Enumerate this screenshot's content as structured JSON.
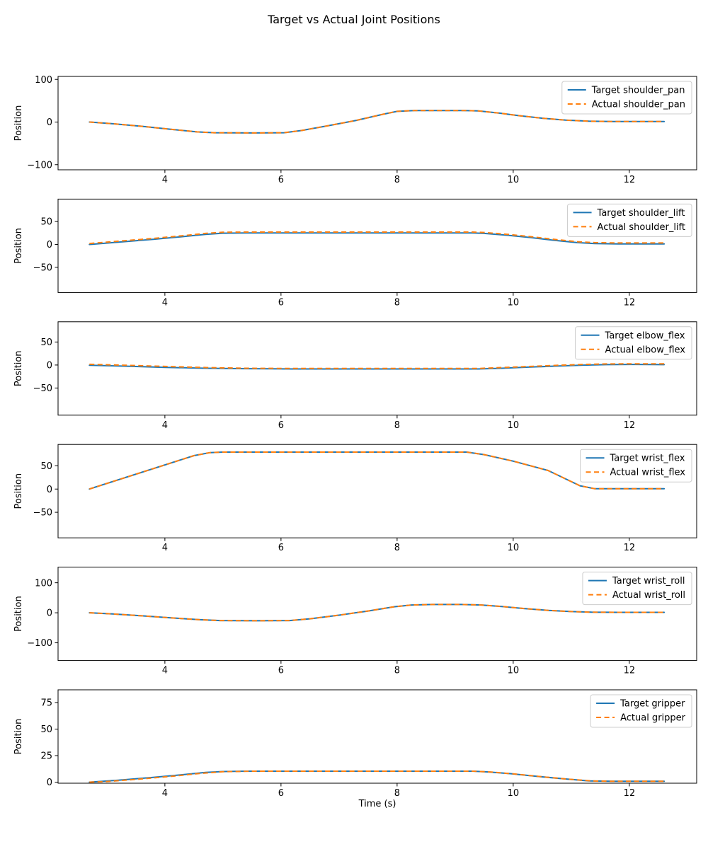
{
  "title": "Target vs Actual Joint Positions",
  "chart_data": {
    "type": "line",
    "title": "Target vs Actual Joint Positions",
    "xlabel": "Time (s)",
    "ylabel": "Position",
    "grid": false,
    "legend_position": "upper right",
    "xlim": [
      2.16,
      13.16
    ],
    "xticks": [
      4,
      6,
      8,
      10,
      12
    ],
    "x_data_range": [
      2.7,
      12.6
    ],
    "colors": {
      "target": "#1f77b4",
      "actual": "#ff7f0e"
    },
    "line_styles": {
      "target": "solid",
      "actual": "dashed"
    },
    "subplots": [
      {
        "joint": "shoulder_pan",
        "legend": [
          "Target shoulder_pan",
          "Actual shoulder_pan"
        ],
        "ylim": [
          -112,
          107
        ],
        "yticks": [
          -100,
          0,
          100
        ],
        "target": [
          [
            2.7,
            0
          ],
          [
            3.1,
            -4
          ],
          [
            3.6,
            -10
          ],
          [
            4.1,
            -17
          ],
          [
            4.55,
            -23
          ],
          [
            4.85,
            -25
          ],
          [
            5.5,
            -25.5
          ],
          [
            6.05,
            -25
          ],
          [
            6.35,
            -20
          ],
          [
            6.8,
            -9
          ],
          [
            7.3,
            4
          ],
          [
            7.75,
            18
          ],
          [
            8.0,
            25
          ],
          [
            8.3,
            27
          ],
          [
            8.8,
            27
          ],
          [
            9.15,
            27
          ],
          [
            9.4,
            26
          ],
          [
            9.75,
            21
          ],
          [
            10.1,
            15
          ],
          [
            10.5,
            9
          ],
          [
            10.9,
            4.5
          ],
          [
            11.3,
            2
          ],
          [
            11.7,
            1.2
          ],
          [
            12.6,
            1.2
          ]
        ],
        "actual": [
          [
            2.7,
            0
          ],
          [
            3.1,
            -4
          ],
          [
            3.6,
            -10
          ],
          [
            4.1,
            -17
          ],
          [
            4.55,
            -23
          ],
          [
            4.85,
            -25
          ],
          [
            5.5,
            -25.5
          ],
          [
            6.05,
            -25
          ],
          [
            6.35,
            -20
          ],
          [
            6.8,
            -9
          ],
          [
            7.3,
            4
          ],
          [
            7.75,
            18
          ],
          [
            8.0,
            25
          ],
          [
            8.3,
            27
          ],
          [
            8.8,
            27
          ],
          [
            9.15,
            27
          ],
          [
            9.4,
            26
          ],
          [
            9.75,
            21
          ],
          [
            10.1,
            15
          ],
          [
            10.5,
            9
          ],
          [
            10.9,
            4.5
          ],
          [
            11.3,
            2
          ],
          [
            11.7,
            1.2
          ],
          [
            12.6,
            1.2
          ]
        ]
      },
      {
        "joint": "shoulder_lift",
        "legend": [
          "Target shoulder_lift",
          "Actual shoulder_lift"
        ],
        "ylim": [
          -105,
          99
        ],
        "yticks": [
          -50,
          0,
          50
        ],
        "target": [
          [
            2.7,
            0
          ],
          [
            3.2,
            5
          ],
          [
            3.8,
            11
          ],
          [
            4.3,
            17
          ],
          [
            4.7,
            22
          ],
          [
            5.0,
            24.5
          ],
          [
            5.4,
            25
          ],
          [
            9.3,
            25
          ],
          [
            9.5,
            24
          ],
          [
            9.9,
            20
          ],
          [
            10.3,
            15
          ],
          [
            10.7,
            9
          ],
          [
            11.1,
            4
          ],
          [
            11.4,
            2
          ],
          [
            11.8,
            1.2
          ],
          [
            12.6,
            1.2
          ]
        ],
        "actual": [
          [
            2.7,
            2
          ],
          [
            3.2,
            7
          ],
          [
            3.8,
            13
          ],
          [
            4.3,
            19
          ],
          [
            4.7,
            24
          ],
          [
            5.0,
            26.5
          ],
          [
            5.4,
            27
          ],
          [
            9.3,
            27
          ],
          [
            9.5,
            26
          ],
          [
            9.9,
            22
          ],
          [
            10.3,
            17
          ],
          [
            10.7,
            11
          ],
          [
            11.1,
            6
          ],
          [
            11.4,
            4
          ],
          [
            11.8,
            3.2
          ],
          [
            12.6,
            3.2
          ]
        ]
      },
      {
        "joint": "elbow_flex",
        "legend": [
          "Target elbow_flex",
          "Actual elbow_flex"
        ],
        "ylim": [
          -109,
          94
        ],
        "yticks": [
          -50,
          0,
          50
        ],
        "target": [
          [
            2.7,
            -0.5
          ],
          [
            3.3,
            -2.5
          ],
          [
            4.0,
            -5
          ],
          [
            4.7,
            -7
          ],
          [
            5.4,
            -8
          ],
          [
            6.2,
            -8.5
          ],
          [
            9.4,
            -8.5
          ],
          [
            9.8,
            -7
          ],
          [
            10.3,
            -4.5
          ],
          [
            10.8,
            -2
          ],
          [
            11.2,
            -0.2
          ],
          [
            11.6,
            0.8
          ],
          [
            12.1,
            1.2
          ],
          [
            12.6,
            0.8
          ]
        ],
        "actual": [
          [
            2.7,
            1.5
          ],
          [
            3.3,
            -0.5
          ],
          [
            4.0,
            -3
          ],
          [
            4.7,
            -5.5
          ],
          [
            5.4,
            -7
          ],
          [
            6.2,
            -7.5
          ],
          [
            9.4,
            -7.5
          ],
          [
            9.8,
            -5.5
          ],
          [
            10.3,
            -3
          ],
          [
            10.8,
            -0.5
          ],
          [
            11.2,
            1.3
          ],
          [
            11.6,
            2.3
          ],
          [
            12.1,
            2.7
          ],
          [
            12.6,
            2.5
          ]
        ]
      },
      {
        "joint": "wrist_flex",
        "legend": [
          "Target wrist_flex",
          "Actual wrist_flex"
        ],
        "ylim": [
          -105,
          96
        ],
        "yticks": [
          -50,
          0,
          50
        ],
        "target": [
          [
            2.7,
            0
          ],
          [
            4.5,
            72
          ],
          [
            4.78,
            78.5
          ],
          [
            5.0,
            79.5
          ],
          [
            9.2,
            79.5
          ],
          [
            9.5,
            74
          ],
          [
            10.0,
            60
          ],
          [
            10.6,
            40
          ],
          [
            11.15,
            7
          ],
          [
            11.4,
            0.8
          ],
          [
            12.6,
            0.8
          ]
        ],
        "actual": [
          [
            2.7,
            0
          ],
          [
            4.5,
            72
          ],
          [
            4.78,
            78.5
          ],
          [
            5.0,
            79.5
          ],
          [
            9.2,
            79.5
          ],
          [
            9.5,
            74
          ],
          [
            10.0,
            60
          ],
          [
            10.6,
            40
          ],
          [
            11.15,
            7
          ],
          [
            11.4,
            0.8
          ],
          [
            12.6,
            0.8
          ]
        ]
      },
      {
        "joint": "wrist_roll",
        "legend": [
          "Target wrist_roll",
          "Actual wrist_roll"
        ],
        "ylim": [
          -159,
          152
        ],
        "yticks": [
          -100,
          0,
          100
        ],
        "target": [
          [
            2.7,
            0
          ],
          [
            3.1,
            -4
          ],
          [
            3.6,
            -10
          ],
          [
            4.1,
            -17
          ],
          [
            4.6,
            -23
          ],
          [
            4.95,
            -26
          ],
          [
            5.6,
            -26.5
          ],
          [
            6.15,
            -26
          ],
          [
            6.5,
            -20
          ],
          [
            7.0,
            -8
          ],
          [
            7.5,
            6
          ],
          [
            7.95,
            20
          ],
          [
            8.25,
            26
          ],
          [
            8.6,
            27.5
          ],
          [
            9.1,
            27.5
          ],
          [
            9.45,
            26
          ],
          [
            9.8,
            21
          ],
          [
            10.2,
            14
          ],
          [
            10.6,
            8
          ],
          [
            11.0,
            4
          ],
          [
            11.35,
            2
          ],
          [
            11.8,
            1.5
          ],
          [
            12.6,
            1.5
          ]
        ],
        "actual": [
          [
            2.7,
            0
          ],
          [
            3.1,
            -4
          ],
          [
            3.6,
            -10
          ],
          [
            4.1,
            -17
          ],
          [
            4.6,
            -23
          ],
          [
            4.95,
            -26
          ],
          [
            5.6,
            -26.5
          ],
          [
            6.15,
            -26
          ],
          [
            6.5,
            -20
          ],
          [
            7.0,
            -8
          ],
          [
            7.5,
            6
          ],
          [
            7.95,
            20
          ],
          [
            8.25,
            26
          ],
          [
            8.6,
            27.5
          ],
          [
            9.1,
            27.5
          ],
          [
            9.45,
            26
          ],
          [
            9.8,
            21
          ],
          [
            10.2,
            14
          ],
          [
            10.6,
            8
          ],
          [
            11.0,
            4
          ],
          [
            11.35,
            2
          ],
          [
            11.8,
            1.5
          ],
          [
            12.6,
            1.5
          ]
        ]
      },
      {
        "joint": "gripper",
        "legend": [
          "Target gripper",
          "Actual gripper"
        ],
        "ylim": [
          -1,
          87
        ],
        "yticks": [
          0,
          25,
          50,
          75
        ],
        "target": [
          [
            2.7,
            0
          ],
          [
            3.2,
            1.8
          ],
          [
            3.8,
            4.5
          ],
          [
            4.3,
            7
          ],
          [
            4.7,
            9.2
          ],
          [
            5.0,
            10
          ],
          [
            5.4,
            10.3
          ],
          [
            9.3,
            10.3
          ],
          [
            9.55,
            9.7
          ],
          [
            9.95,
            8
          ],
          [
            10.4,
            5.5
          ],
          [
            10.9,
            3
          ],
          [
            11.3,
            1.2
          ],
          [
            11.7,
            0.8
          ],
          [
            12.6,
            0.8
          ]
        ],
        "actual": [
          [
            2.7,
            0
          ],
          [
            3.0,
            0.6
          ],
          [
            3.5,
            2.6
          ],
          [
            4.1,
            5.4
          ],
          [
            4.6,
            8.2
          ],
          [
            5.0,
            9.8
          ],
          [
            5.5,
            10.3
          ],
          [
            9.3,
            10.3
          ],
          [
            9.6,
            9.6
          ],
          [
            10.0,
            7.8
          ],
          [
            10.45,
            5.3
          ],
          [
            10.95,
            2.8
          ],
          [
            11.35,
            1.1
          ],
          [
            11.75,
            0.8
          ],
          [
            12.6,
            0.8
          ]
        ]
      }
    ]
  }
}
